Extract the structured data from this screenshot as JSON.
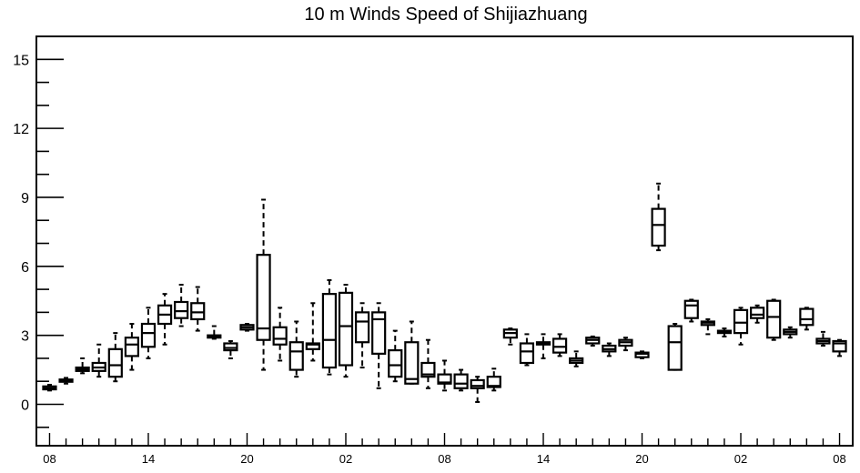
{
  "chart_data": {
    "type": "box",
    "title": "10 m Winds Speed of Shijiazhuang",
    "xlabel": "",
    "ylabel": "",
    "ylim": [
      -1.8,
      16.0
    ],
    "yticks": [
      0,
      3,
      6,
      9,
      12,
      15
    ],
    "yminor_step": 1,
    "xticks": [
      {
        "index": 0,
        "label": "08"
      },
      {
        "index": 6,
        "label": "14"
      },
      {
        "index": 12,
        "label": "20"
      },
      {
        "index": 18,
        "label": "02"
      },
      {
        "index": 24,
        "label": "08"
      },
      {
        "index": 30,
        "label": "14"
      },
      {
        "index": 36,
        "label": "20"
      },
      {
        "index": 42,
        "label": "02"
      },
      {
        "index": 48,
        "label": "08"
      }
    ],
    "xlim": [
      -0.8,
      48.8
    ],
    "grid": false,
    "boxes": [
      {
        "hour": 0,
        "min": 0.6,
        "q1": 0.65,
        "median": 0.7,
        "q3": 0.78,
        "max": 0.85
      },
      {
        "hour": 1,
        "min": 0.9,
        "q1": 0.98,
        "median": 1.02,
        "q3": 1.08,
        "max": 1.15
      },
      {
        "hour": 2,
        "min": 1.35,
        "q1": 1.45,
        "median": 1.52,
        "q3": 1.6,
        "max": 2.0
      },
      {
        "hour": 3,
        "min": 1.2,
        "q1": 1.45,
        "median": 1.6,
        "q3": 1.8,
        "max": 2.6
      },
      {
        "hour": 4,
        "min": 1.0,
        "q1": 1.2,
        "median": 1.7,
        "q3": 2.4,
        "max": 3.1
      },
      {
        "hour": 5,
        "min": 1.5,
        "q1": 2.1,
        "median": 2.6,
        "q3": 2.9,
        "max": 3.5
      },
      {
        "hour": 6,
        "min": 2.0,
        "q1": 2.5,
        "median": 3.1,
        "q3": 3.5,
        "max": 4.2
      },
      {
        "hour": 7,
        "min": 2.6,
        "q1": 3.5,
        "median": 3.9,
        "q3": 4.3,
        "max": 4.8
      },
      {
        "hour": 8,
        "min": 3.4,
        "q1": 3.75,
        "median": 4.05,
        "q3": 4.45,
        "max": 5.2
      },
      {
        "hour": 9,
        "min": 3.2,
        "q1": 3.7,
        "median": 4.0,
        "q3": 4.4,
        "max": 5.1
      },
      {
        "hour": 10,
        "min": 2.85,
        "q1": 2.9,
        "median": 2.95,
        "q3": 3.0,
        "max": 3.4
      },
      {
        "hour": 11,
        "min": 2.0,
        "q1": 2.35,
        "median": 2.45,
        "q3": 2.65,
        "max": 2.75
      },
      {
        "hour": 12,
        "min": 3.2,
        "q1": 3.25,
        "median": 3.35,
        "q3": 3.45,
        "max": 3.5
      },
      {
        "hour": 13,
        "min": 1.5,
        "q1": 2.8,
        "median": 3.3,
        "q3": 6.5,
        "max": 8.9
      },
      {
        "hour": 14,
        "min": 1.9,
        "q1": 2.6,
        "median": 2.85,
        "q3": 3.35,
        "max": 4.2
      },
      {
        "hour": 15,
        "min": 1.2,
        "q1": 1.5,
        "median": 2.3,
        "q3": 2.7,
        "max": 3.6
      },
      {
        "hour": 16,
        "min": 1.9,
        "q1": 2.4,
        "median": 2.6,
        "q3": 2.65,
        "max": 4.4
      },
      {
        "hour": 17,
        "min": 1.3,
        "q1": 1.6,
        "median": 2.8,
        "q3": 4.8,
        "max": 5.4
      },
      {
        "hour": 18,
        "min": 1.2,
        "q1": 1.7,
        "median": 3.4,
        "q3": 4.85,
        "max": 5.2
      },
      {
        "hour": 19,
        "min": 1.6,
        "q1": 2.7,
        "median": 3.6,
        "q3": 4.0,
        "max": 4.4
      },
      {
        "hour": 20,
        "min": 0.7,
        "q1": 2.2,
        "median": 3.7,
        "q3": 4.0,
        "max": 4.4
      },
      {
        "hour": 21,
        "min": 1.0,
        "q1": 1.2,
        "median": 1.7,
        "q3": 2.35,
        "max": 3.2
      },
      {
        "hour": 22,
        "min": 0.9,
        "q1": 0.9,
        "median": 1.1,
        "q3": 2.7,
        "max": 3.6
      },
      {
        "hour": 23,
        "min": 0.7,
        "q1": 1.2,
        "median": 1.3,
        "q3": 1.8,
        "max": 2.8
      },
      {
        "hour": 24,
        "min": 0.6,
        "q1": 0.9,
        "median": 0.95,
        "q3": 1.3,
        "max": 1.9
      },
      {
        "hour": 25,
        "min": 0.6,
        "q1": 0.7,
        "median": 0.9,
        "q3": 1.3,
        "max": 1.5
      },
      {
        "hour": 26,
        "min": 0.1,
        "q1": 0.7,
        "median": 0.8,
        "q3": 1.05,
        "max": 1.2
      },
      {
        "hour": 27,
        "min": 0.6,
        "q1": 0.75,
        "median": 0.8,
        "q3": 1.2,
        "max": 1.55
      },
      {
        "hour": 28,
        "min": 2.6,
        "q1": 2.9,
        "median": 3.1,
        "q3": 3.25,
        "max": 3.3
      },
      {
        "hour": 29,
        "min": 1.7,
        "q1": 1.8,
        "median": 2.3,
        "q3": 2.65,
        "max": 3.05
      },
      {
        "hour": 30,
        "min": 2.0,
        "q1": 2.6,
        "median": 2.65,
        "q3": 2.7,
        "max": 3.05
      },
      {
        "hour": 31,
        "min": 2.1,
        "q1": 2.25,
        "median": 2.5,
        "q3": 2.85,
        "max": 3.05
      },
      {
        "hour": 32,
        "min": 1.65,
        "q1": 1.8,
        "median": 1.9,
        "q3": 2.0,
        "max": 2.3
      },
      {
        "hour": 33,
        "min": 2.55,
        "q1": 2.65,
        "median": 2.8,
        "q3": 2.9,
        "max": 2.95
      },
      {
        "hour": 34,
        "min": 2.1,
        "q1": 2.3,
        "median": 2.4,
        "q3": 2.55,
        "max": 2.65
      },
      {
        "hour": 35,
        "min": 2.35,
        "q1": 2.55,
        "median": 2.7,
        "q3": 2.8,
        "max": 2.9
      },
      {
        "hour": 36,
        "min": 2.0,
        "q1": 2.05,
        "median": 2.2,
        "q3": 2.25,
        "max": 2.3
      },
      {
        "hour": 37,
        "min": 6.7,
        "q1": 6.9,
        "median": 7.8,
        "q3": 8.5,
        "max": 9.6
      },
      {
        "hour": 38,
        "min": 1.5,
        "q1": 1.5,
        "median": 2.7,
        "q3": 3.4,
        "max": 3.5
      },
      {
        "hour": 39,
        "min": 3.6,
        "q1": 3.75,
        "median": 4.3,
        "q3": 4.5,
        "max": 4.55
      },
      {
        "hour": 40,
        "min": 3.05,
        "q1": 3.45,
        "median": 3.55,
        "q3": 3.6,
        "max": 3.7
      },
      {
        "hour": 41,
        "min": 2.95,
        "q1": 3.1,
        "median": 3.15,
        "q3": 3.2,
        "max": 3.3
      },
      {
        "hour": 42,
        "min": 2.6,
        "q1": 3.1,
        "median": 3.55,
        "q3": 4.1,
        "max": 4.2
      },
      {
        "hour": 43,
        "min": 3.55,
        "q1": 3.75,
        "median": 3.9,
        "q3": 4.2,
        "max": 4.3
      },
      {
        "hour": 44,
        "min": 2.8,
        "q1": 2.9,
        "median": 3.8,
        "q3": 4.5,
        "max": 4.55
      },
      {
        "hour": 45,
        "min": 2.9,
        "q1": 3.05,
        "median": 3.15,
        "q3": 3.25,
        "max": 3.35
      },
      {
        "hour": 46,
        "min": 3.25,
        "q1": 3.45,
        "median": 3.7,
        "q3": 4.15,
        "max": 4.2
      },
      {
        "hour": 47,
        "min": 2.55,
        "q1": 2.65,
        "median": 2.75,
        "q3": 2.85,
        "max": 3.15
      },
      {
        "hour": 48,
        "min": 2.1,
        "q1": 2.3,
        "median": 2.65,
        "q3": 2.75,
        "max": 2.8
      }
    ]
  }
}
